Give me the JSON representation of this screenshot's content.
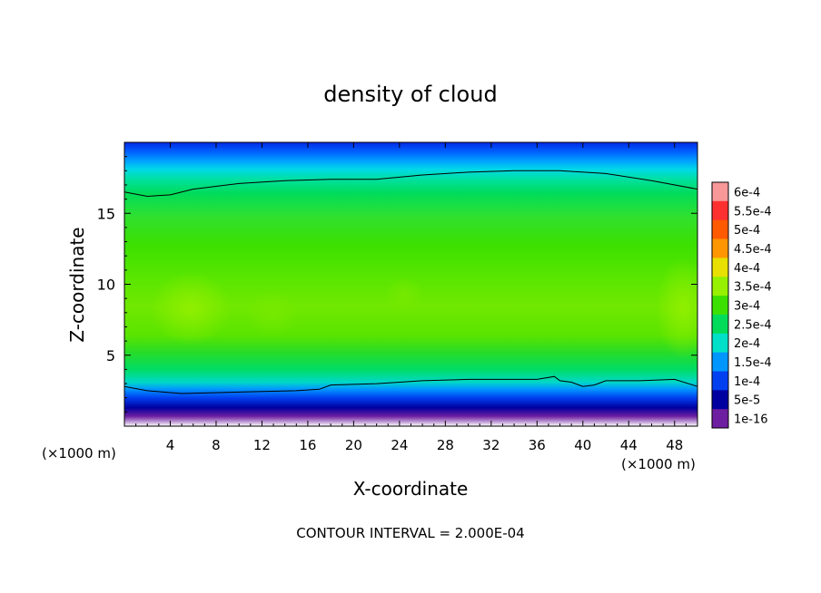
{
  "chart_data": {
    "type": "heatmap",
    "title": "density of cloud",
    "xlabel": "X-coordinate",
    "ylabel": "Z-coordinate",
    "x_unit_left": "(×1000 m)",
    "x_unit_right": "(×1000 m)",
    "footer": "CONTOUR INTERVAL = 2.000E-04",
    "xlim": [
      0,
      50
    ],
    "ylim": [
      0,
      20
    ],
    "x_ticks": [
      4,
      8,
      12,
      16,
      20,
      24,
      28,
      32,
      36,
      40,
      44,
      48
    ],
    "x_tick_labels": [
      "4",
      "8",
      "12",
      "16",
      "20",
      "24",
      "28",
      "32",
      "36",
      "40",
      "44",
      "48"
    ],
    "y_ticks": [
      5,
      10,
      15
    ],
    "y_tick_labels": [
      "5",
      "10",
      "15"
    ],
    "legend": {
      "position": "right",
      "labels": [
        "6e-4",
        "5.5e-4",
        "5e-4",
        "4.5e-4",
        "4e-4",
        "3.5e-4",
        "3e-4",
        "2.5e-4",
        "2e-4",
        "1.5e-4",
        "1e-4",
        "5e-5",
        "1e-16"
      ],
      "colors": [
        "#f89898",
        "#ff3030",
        "#ff5a00",
        "#ff9600",
        "#e8e000",
        "#96f000",
        "#3ce000",
        "#00dc5a",
        "#00e0c8",
        "#0096ff",
        "#0040f0",
        "#0000a0",
        "#6e1ea0"
      ]
    },
    "contour_levels": [
      0.0001
    ],
    "contour_lines": [
      {
        "level": 0.0001,
        "z": [
          [
            0,
            16.5
          ],
          [
            2,
            16.2
          ],
          [
            4,
            16.3
          ],
          [
            6,
            16.7
          ],
          [
            10,
            17.1
          ],
          [
            14,
            17.3
          ],
          [
            18,
            17.4
          ],
          [
            22,
            17.4
          ],
          [
            26,
            17.7
          ],
          [
            30,
            17.9
          ],
          [
            34,
            18.0
          ],
          [
            38,
            18.0
          ],
          [
            42,
            17.8
          ],
          [
            46,
            17.3
          ],
          [
            50,
            16.7
          ]
        ]
      },
      {
        "level": 0.0001,
        "z": [
          [
            0,
            2.8
          ],
          [
            2,
            2.5
          ],
          [
            5,
            2.3
          ],
          [
            10,
            2.4
          ],
          [
            15,
            2.5
          ],
          [
            17,
            2.6
          ],
          [
            18,
            2.9
          ],
          [
            22,
            3.0
          ],
          [
            26,
            3.2
          ],
          [
            30,
            3.3
          ],
          [
            36,
            3.3
          ],
          [
            37.5,
            3.5
          ],
          [
            38,
            3.2
          ],
          [
            39,
            3.1
          ],
          [
            40,
            2.8
          ],
          [
            41,
            2.9
          ],
          [
            42,
            3.2
          ],
          [
            45,
            3.2
          ],
          [
            48,
            3.3
          ],
          [
            50,
            2.8
          ]
        ]
      }
    ],
    "field_description_levels": {
      "top_band_z": [
        18,
        20
      ],
      "core_z": [
        4,
        16
      ],
      "bottom_band_z": [
        0.3,
        2.5
      ]
    }
  }
}
